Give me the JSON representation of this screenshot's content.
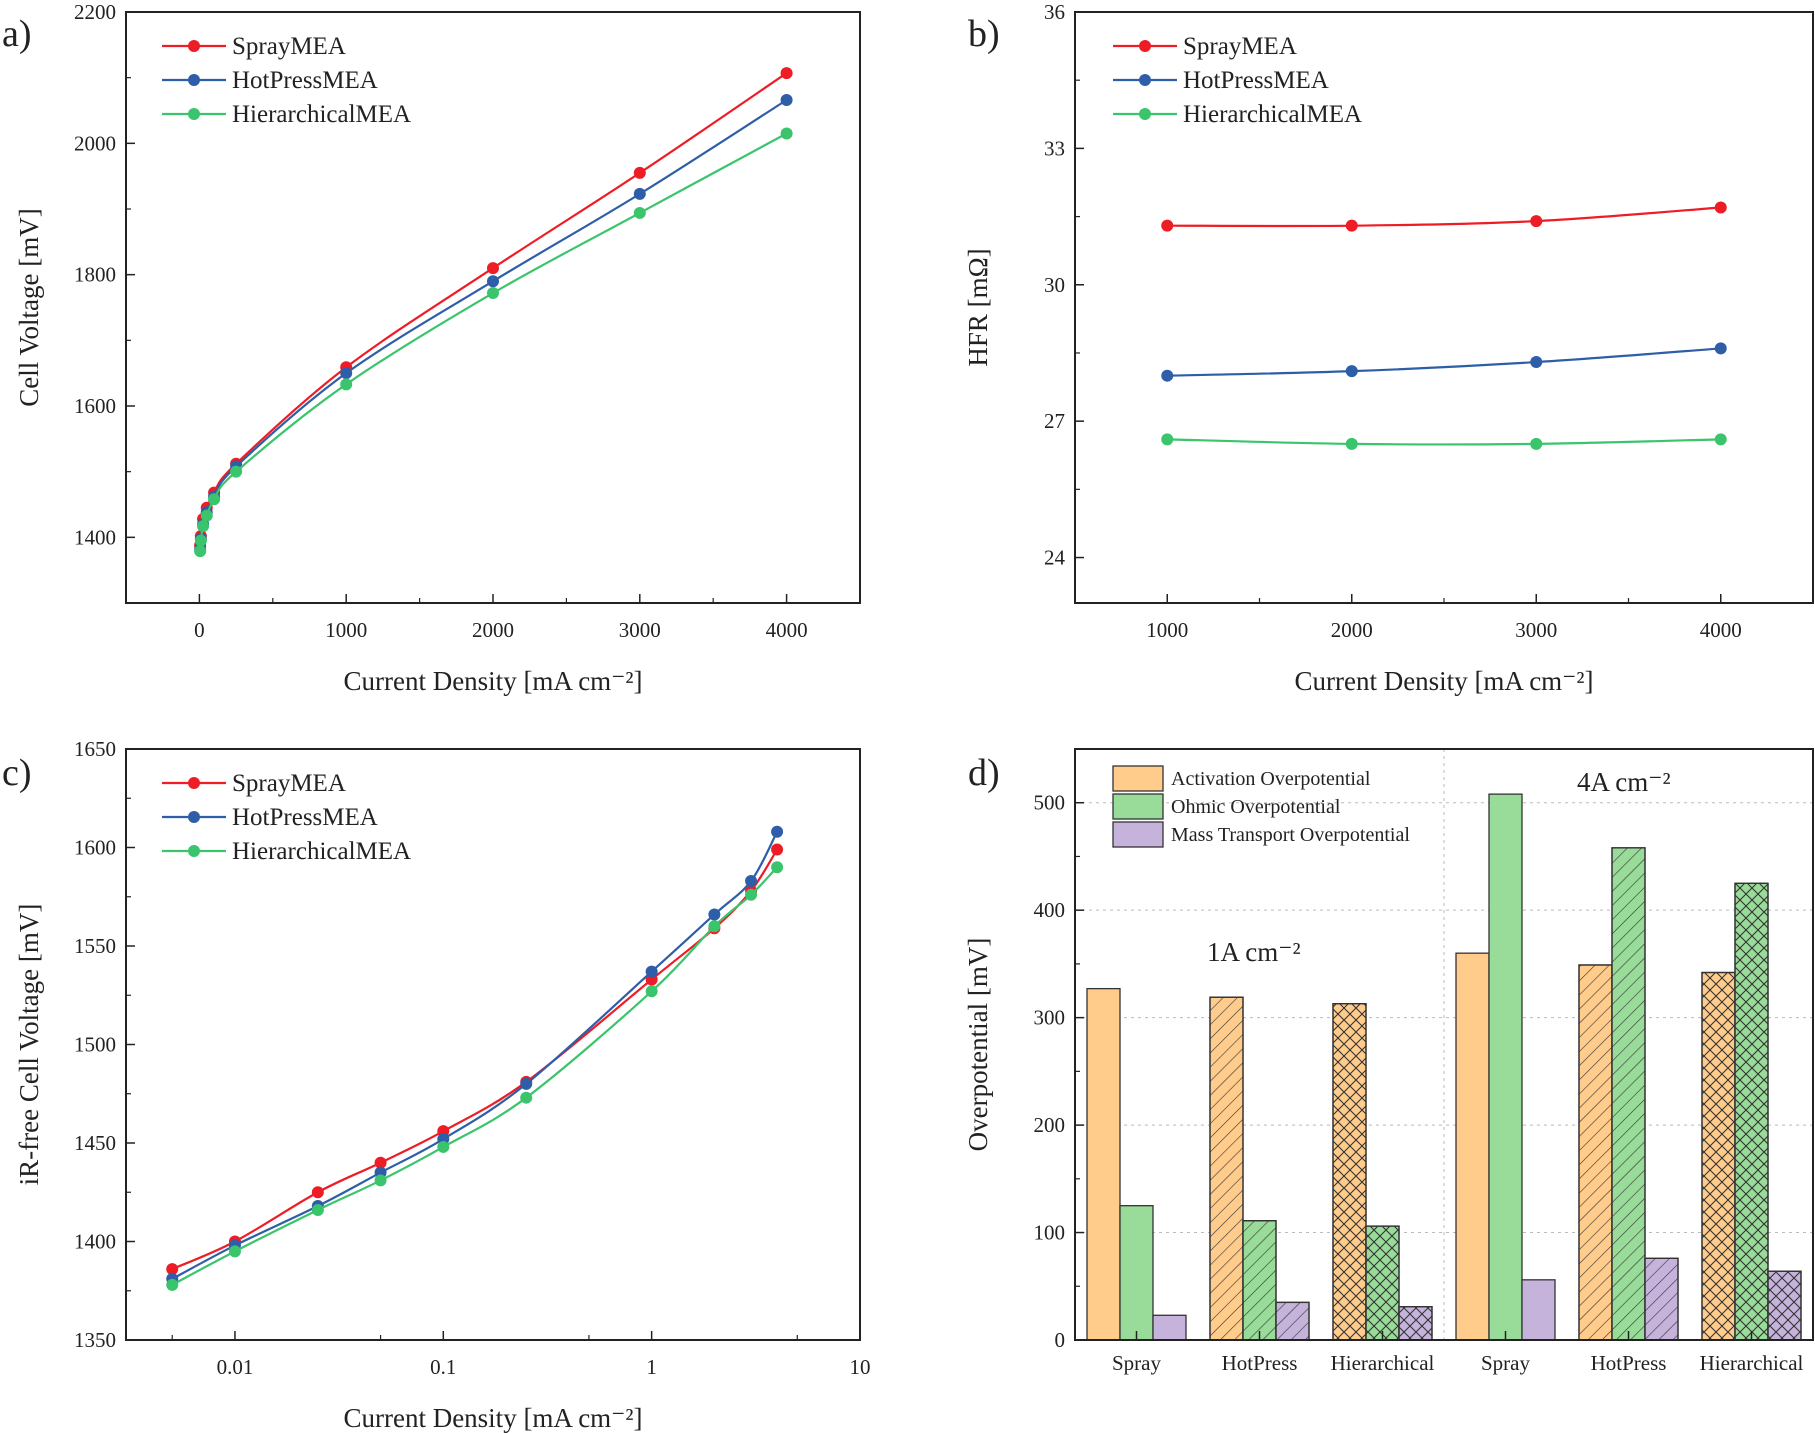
{
  "colors": {
    "SprayMEA": "#ee1c25",
    "HotPressMEA": "#2e5ea8",
    "HierarchicalMEA": "#3ac46c",
    "activation": "#ffcc8c",
    "ohmic": "#99db98",
    "mass_transport": "#c5b3dc"
  },
  "chart_data": [
    {
      "panel_label": "a)",
      "type": "line",
      "xlabel": "Current Density [mA cm⁻²]",
      "ylabel": "Cell Voltage [mV]",
      "xscale": "linear",
      "xlim": [
        -500,
        4500
      ],
      "ylim": [
        1300,
        2200
      ],
      "xticks": [
        0,
        1000,
        2000,
        3000,
        4000
      ],
      "xtick_labels": [
        "0",
        "1000",
        "2000",
        "3000",
        "4000"
      ],
      "yticks": [
        1400,
        1600,
        1800,
        2000,
        2200
      ],
      "ytick_labels": [
        "1400",
        "1600",
        "1800",
        "2000",
        "2200"
      ],
      "legend": "top-left",
      "x": [
        5,
        10,
        25,
        50,
        100,
        250,
        1000,
        2000,
        3000,
        4000
      ],
      "series": [
        {
          "name": "SprayMEA",
          "values": [
            1388,
            1402,
            1428,
            1445,
            1468,
            1512,
            1659,
            1810,
            1955,
            2107
          ]
        },
        {
          "name": "HotPressMEA",
          "values": [
            1382,
            1398,
            1420,
            1438,
            1462,
            1508,
            1650,
            1790,
            1923,
            2066
          ]
        },
        {
          "name": "HierarchicalMEA",
          "values": [
            1379,
            1395,
            1417,
            1433,
            1458,
            1500,
            1633,
            1772,
            1894,
            2015
          ]
        }
      ]
    },
    {
      "panel_label": "b)",
      "type": "line",
      "xlabel": "Current Density [mA cm⁻²]",
      "ylabel": "HFR [mΩ]",
      "xscale": "linear",
      "xlim": [
        500,
        4500
      ],
      "ylim": [
        23,
        36
      ],
      "xticks": [
        1000,
        2000,
        3000,
        4000
      ],
      "xtick_labels": [
        "1000",
        "2000",
        "3000",
        "4000"
      ],
      "yticks": [
        24,
        27,
        30,
        33,
        36
      ],
      "ytick_labels": [
        "24",
        "27",
        "30",
        "33",
        "36"
      ],
      "legend": "top-left",
      "x": [
        1000,
        2000,
        3000,
        4000
      ],
      "series": [
        {
          "name": "SprayMEA",
          "values": [
            31.3,
            31.3,
            31.4,
            31.7
          ]
        },
        {
          "name": "HotPressMEA",
          "values": [
            28.0,
            28.1,
            28.3,
            28.6
          ]
        },
        {
          "name": "HierarchicalMEA",
          "values": [
            26.6,
            26.5,
            26.5,
            26.6
          ]
        }
      ]
    },
    {
      "panel_label": "c)",
      "type": "line",
      "xlabel": "Current Density [mA cm⁻²]",
      "ylabel": "iR-free Cell Voltage [mV]",
      "xscale": "log",
      "xlim": [
        0.003,
        10
      ],
      "ylim": [
        1350,
        1650
      ],
      "xticks": [
        0.01,
        0.1,
        1,
        10
      ],
      "xtick_labels": [
        "0.01",
        "0.1",
        "1",
        "10"
      ],
      "yticks": [
        1350,
        1400,
        1450,
        1500,
        1550,
        1600,
        1650
      ],
      "ytick_labels": [
        "1350",
        "1400",
        "1450",
        "1500",
        "1550",
        "1600",
        "1650"
      ],
      "legend": "top-left",
      "x": [
        0.005,
        0.01,
        0.025,
        0.05,
        0.1,
        0.25,
        1,
        2,
        3,
        4
      ],
      "series": [
        {
          "name": "SprayMEA",
          "values": [
            1386,
            1400,
            1425,
            1440,
            1456,
            1481,
            1533,
            1559,
            1578,
            1599
          ]
        },
        {
          "name": "HotPressMEA",
          "values": [
            1381,
            1398,
            1418,
            1435,
            1452,
            1480,
            1537,
            1566,
            1583,
            1608
          ]
        },
        {
          "name": "HierarchicalMEA",
          "values": [
            1378,
            1395,
            1416,
            1431,
            1448,
            1473,
            1527,
            1560,
            1576,
            1590
          ]
        }
      ]
    },
    {
      "panel_label": "d)",
      "type": "bar",
      "ylabel": "Overpotential [mV]",
      "ylim": [
        0,
        550
      ],
      "yticks": [
        0,
        100,
        200,
        300,
        400,
        500
      ],
      "ytick_labels": [
        "0",
        "100",
        "200",
        "300",
        "400",
        "500"
      ],
      "grid": "dotted horizontal",
      "legend": "top-left",
      "categories": [
        "Spray",
        "HotPress",
        "Hierarchical",
        "Spray",
        "HotPress",
        "Hierarchical"
      ],
      "hatches": [
        "none",
        "diagonal",
        "crosshatch",
        "none",
        "diagonal",
        "crosshatch"
      ],
      "annotations": [
        "1A cm⁻²",
        "4A cm⁻²"
      ],
      "series": [
        {
          "name": "Activation Overpotential",
          "key": "activation",
          "values": [
            327,
            319,
            313,
            360,
            349,
            342
          ]
        },
        {
          "name": "Ohmic Overpotential",
          "key": "ohmic",
          "values": [
            125,
            111,
            106,
            508,
            458,
            425
          ]
        },
        {
          "name": "Mass Transport Overpotential",
          "key": "mass_transport",
          "values": [
            23,
            35,
            31,
            56,
            76,
            64
          ]
        }
      ]
    }
  ]
}
